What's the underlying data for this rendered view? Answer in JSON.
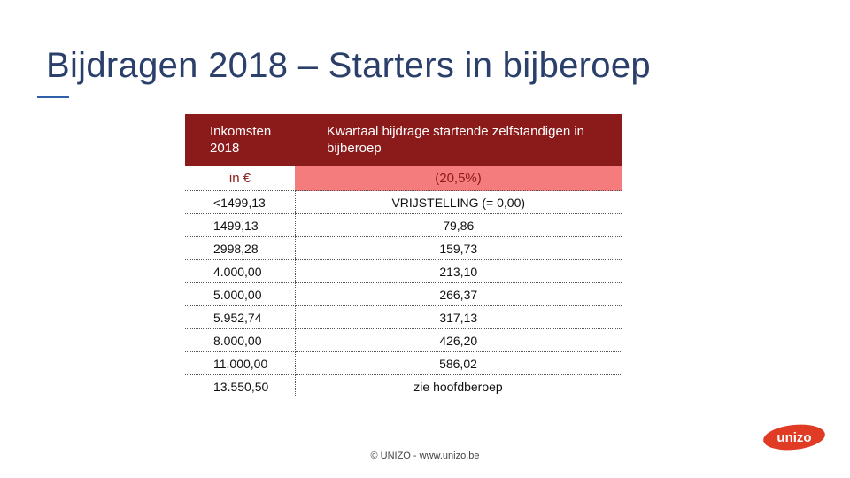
{
  "slide": {
    "title": "Bijdragen 2018 – Starters in bijberoep",
    "footer": "© UNIZO - www.unizo.be",
    "logo_text": "unizo",
    "colors": {
      "header": "#8b1a1a",
      "unit_highlight": "#f47c7c",
      "title": "#2b3f6b",
      "logo": "#e03b24"
    }
  },
  "table": {
    "header": {
      "col1": "Inkomsten 2018",
      "col2": "Kwartaal bijdrage startende zelfstandigen in bijberoep"
    },
    "units": {
      "col1": "in €",
      "col2": "(20,5%)"
    },
    "rows": [
      {
        "income": "<1499,13",
        "contribution": "VRIJSTELLING (= 0,00)"
      },
      {
        "income": "1499,13",
        "contribution": "79,86"
      },
      {
        "income": "2998,28",
        "contribution": "159,73"
      },
      {
        "income": "4.000,00",
        "contribution": "213,10"
      },
      {
        "income": "5.000,00",
        "contribution": "266,37"
      },
      {
        "income": "5.952,74",
        "contribution": "317,13"
      },
      {
        "income": "8.000,00",
        "contribution": "426,20"
      },
      {
        "income": "11.000,00",
        "contribution": "586,02"
      },
      {
        "income": "13.550,50",
        "contribution": "zie hoofdberoep"
      }
    ]
  }
}
